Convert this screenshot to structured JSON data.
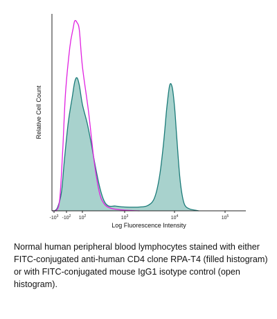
{
  "chart_data": {
    "type": "area",
    "xlabel": "Log Fluorescence Intensity",
    "ylabel": "Relative Cell Count",
    "x_scale": "log",
    "xlim": [
      -2000,
      400000
    ],
    "ylim": [
      0,
      1.0
    ],
    "grid": false,
    "legend": "none",
    "x_ticks": [
      {
        "base": "-10",
        "exp": "3"
      },
      {
        "base": "-10",
        "exp": "2"
      },
      {
        "base": "10",
        "exp": "2"
      },
      {
        "base": "10",
        "exp": "3"
      },
      {
        "base": "10",
        "exp": "4"
      },
      {
        "base": "10",
        "exp": "5"
      }
    ],
    "series": [
      {
        "style": "filled",
        "color": "#1a7a78",
        "fill": "#a8d2cd",
        "x": [
          -2000,
          -900,
          -500,
          -250,
          -150,
          -80,
          -30,
          0,
          30,
          60,
          100,
          130,
          160,
          200,
          260,
          330,
          420,
          600,
          1000,
          2000,
          3000,
          4000,
          5000,
          6000,
          7000,
          8000,
          9000,
          10000,
          11000,
          12500,
          14000,
          16000,
          20000,
          30000
        ],
        "y": [
          0.0,
          0.0,
          0.02,
          0.1,
          0.26,
          0.46,
          0.6,
          0.68,
          0.7,
          0.66,
          0.56,
          0.46,
          0.36,
          0.24,
          0.12,
          0.05,
          0.025,
          0.025,
          0.02,
          0.02,
          0.03,
          0.07,
          0.18,
          0.35,
          0.54,
          0.66,
          0.65,
          0.55,
          0.4,
          0.2,
          0.09,
          0.03,
          0.01,
          0.0
        ]
      },
      {
        "style": "open",
        "color": "#e020e0",
        "x": [
          -2000,
          -700,
          -350,
          -200,
          -120,
          -60,
          -20,
          0,
          30,
          60,
          100,
          140,
          190,
          250,
          320,
          450,
          800,
          2000
        ],
        "y": [
          0.0,
          0.0,
          0.06,
          0.32,
          0.62,
          0.86,
          0.96,
          1.0,
          0.99,
          0.95,
          0.76,
          0.52,
          0.26,
          0.1,
          0.04,
          0.015,
          0.005,
          0.0
        ]
      }
    ]
  },
  "caption": "Normal human peripheral blood lymphocytes stained with either FITC-conjugated anti-human CD4 clone RPA-T4 (filled histogram) or with FITC-conjugated mouse IgG1 isotype control (open histogram)."
}
